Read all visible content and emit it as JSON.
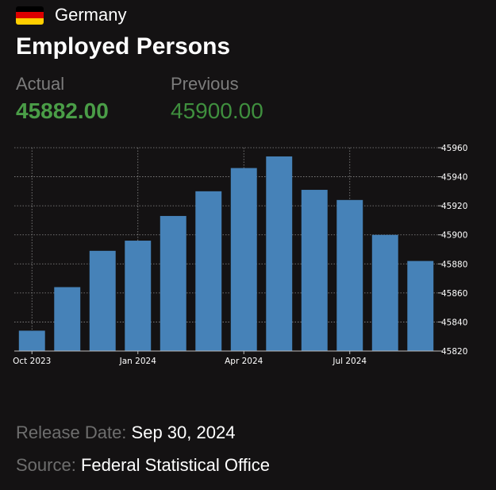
{
  "header": {
    "country": "Germany",
    "flag_colors": [
      "#000000",
      "#dd0000",
      "#ffce00"
    ],
    "icon": "germany-flag-icon"
  },
  "title": "Employed Persons",
  "stats": {
    "actual_label": "Actual",
    "actual_value": "45882.00",
    "previous_label": "Previous",
    "previous_value": "45900.00"
  },
  "chart_data": {
    "type": "bar",
    "categories": [
      "Oct 2023",
      "Nov 2023",
      "Dec 2023",
      "Jan 2024",
      "Feb 2024",
      "Mar 2024",
      "Apr 2024",
      "May 2024",
      "Jun 2024",
      "Jul 2024",
      "Aug 2024",
      "Sep 2024"
    ],
    "values": [
      45834,
      45864,
      45889,
      45896,
      45913,
      45930,
      45946,
      45954,
      45931,
      45924,
      45900,
      45882
    ],
    "x_tick_labels": [
      "Oct 2023",
      "Jan 2024",
      "Apr 2024",
      "Jul 2024"
    ],
    "x_tick_categories": [
      "Oct 2023",
      "Jan 2024",
      "Apr 2024",
      "Jul 2024"
    ],
    "y_ticks": [
      45820,
      45840,
      45860,
      45880,
      45900,
      45920,
      45940,
      45960
    ],
    "ylim": [
      45820,
      45960
    ],
    "bar_color": "#4682b8",
    "grid": true,
    "title": "",
    "xlabel": "",
    "ylabel": ""
  },
  "release": {
    "label": "Release Date:",
    "value": "Sep 30, 2024"
  },
  "source": {
    "label": "Source:",
    "value": "Federal Statistical Office"
  }
}
